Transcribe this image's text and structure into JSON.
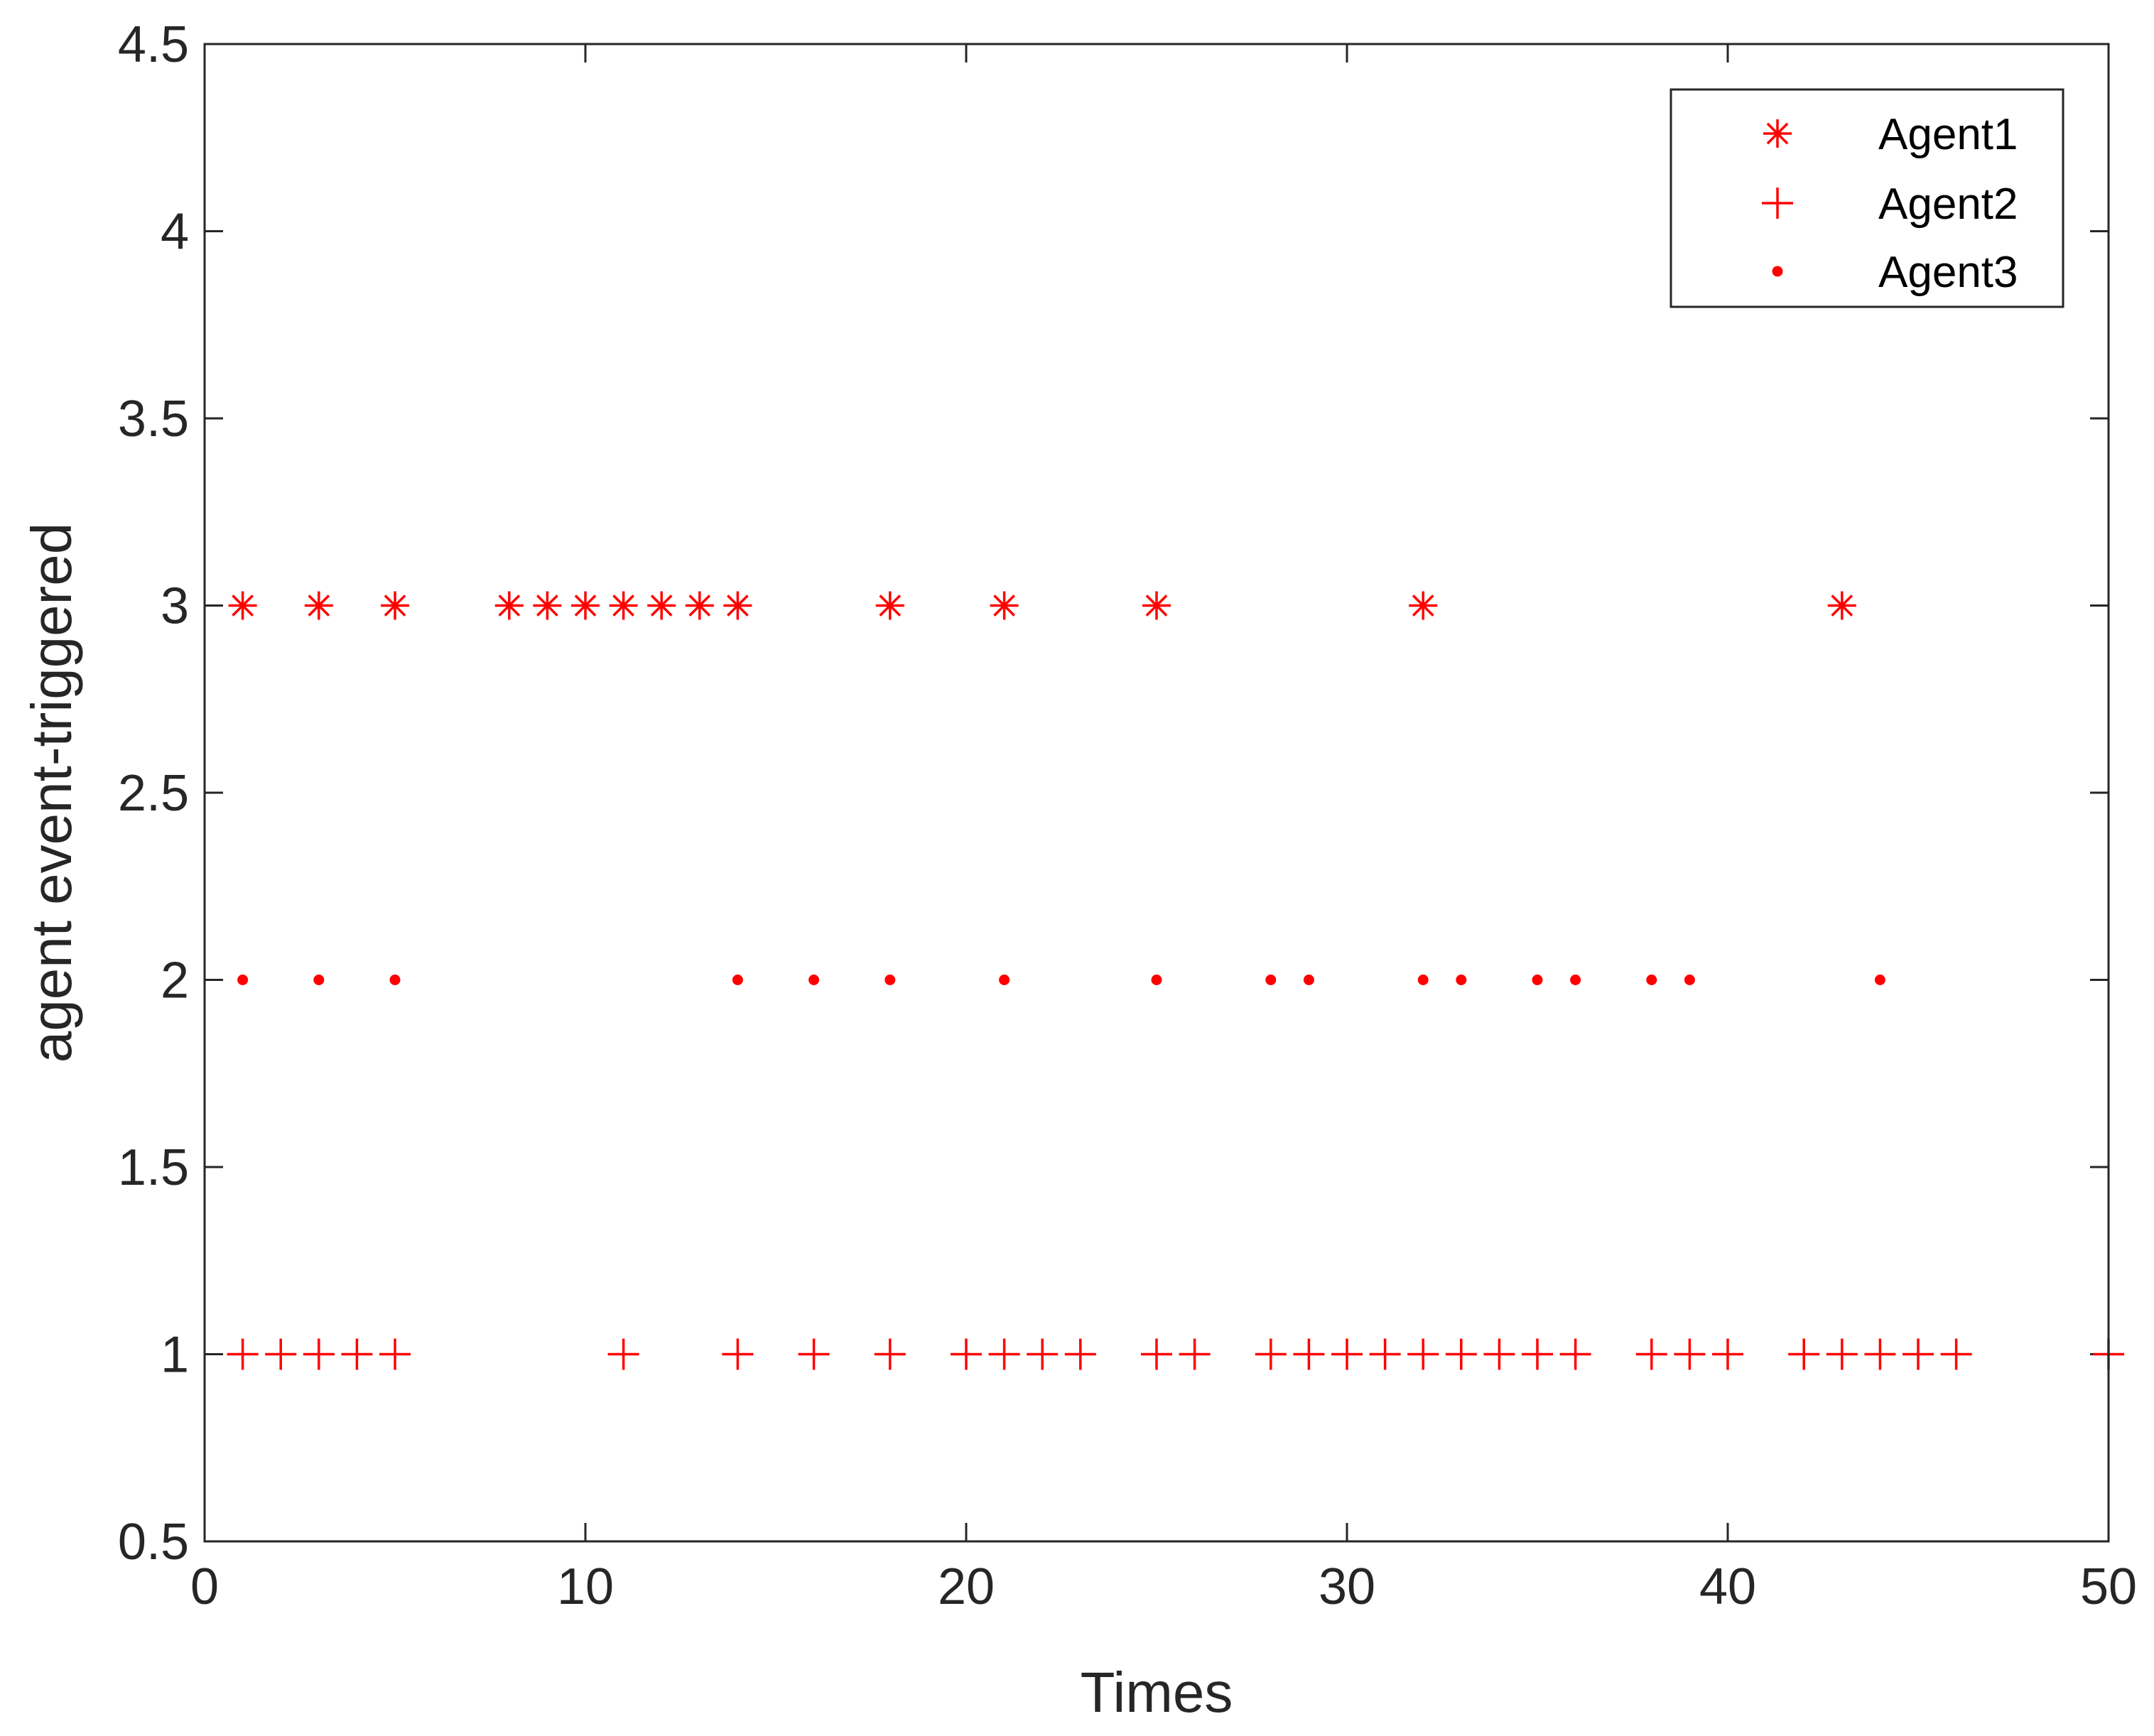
{
  "chart_data": {
    "type": "scatter",
    "title": "",
    "xlabel": "Times",
    "ylabel": "agent event-triggered",
    "xlim": [
      0,
      50
    ],
    "ylim": [
      0.5,
      4.5
    ],
    "xticks": [
      0,
      10,
      20,
      30,
      40,
      50
    ],
    "xtick_labels": [
      "0",
      "10",
      "20",
      "30",
      "40",
      "50"
    ],
    "yticks": [
      0.5,
      1,
      1.5,
      2,
      2.5,
      3,
      3.5,
      4,
      4.5
    ],
    "ytick_labels": [
      "0.5",
      "1",
      "1.5",
      "2",
      "2.5",
      "3",
      "3.5",
      "4",
      "4.5"
    ],
    "grid": false,
    "legend_position": "top-right",
    "marker_color": "#ff0000",
    "series": [
      {
        "name": "Agent1",
        "marker": "asterisk",
        "y": 3,
        "x": [
          1,
          3,
          5,
          8,
          9,
          10,
          11,
          12,
          13,
          14,
          18,
          21,
          25,
          32,
          43
        ]
      },
      {
        "name": "Agent2",
        "marker": "plus",
        "y": 1,
        "x": [
          1,
          2,
          3,
          4,
          5,
          11,
          14,
          16,
          18,
          20,
          21,
          22,
          23,
          25,
          26,
          28,
          29,
          30,
          31,
          32,
          33,
          34,
          35,
          36,
          38,
          39,
          40,
          42,
          43,
          44,
          45,
          46,
          50
        ]
      },
      {
        "name": "Agent3",
        "marker": "dot",
        "y": 2,
        "x": [
          1,
          3,
          5,
          14,
          16,
          18,
          21,
          25,
          28,
          29,
          32,
          33,
          35,
          36,
          38,
          39,
          44
        ]
      }
    ]
  }
}
